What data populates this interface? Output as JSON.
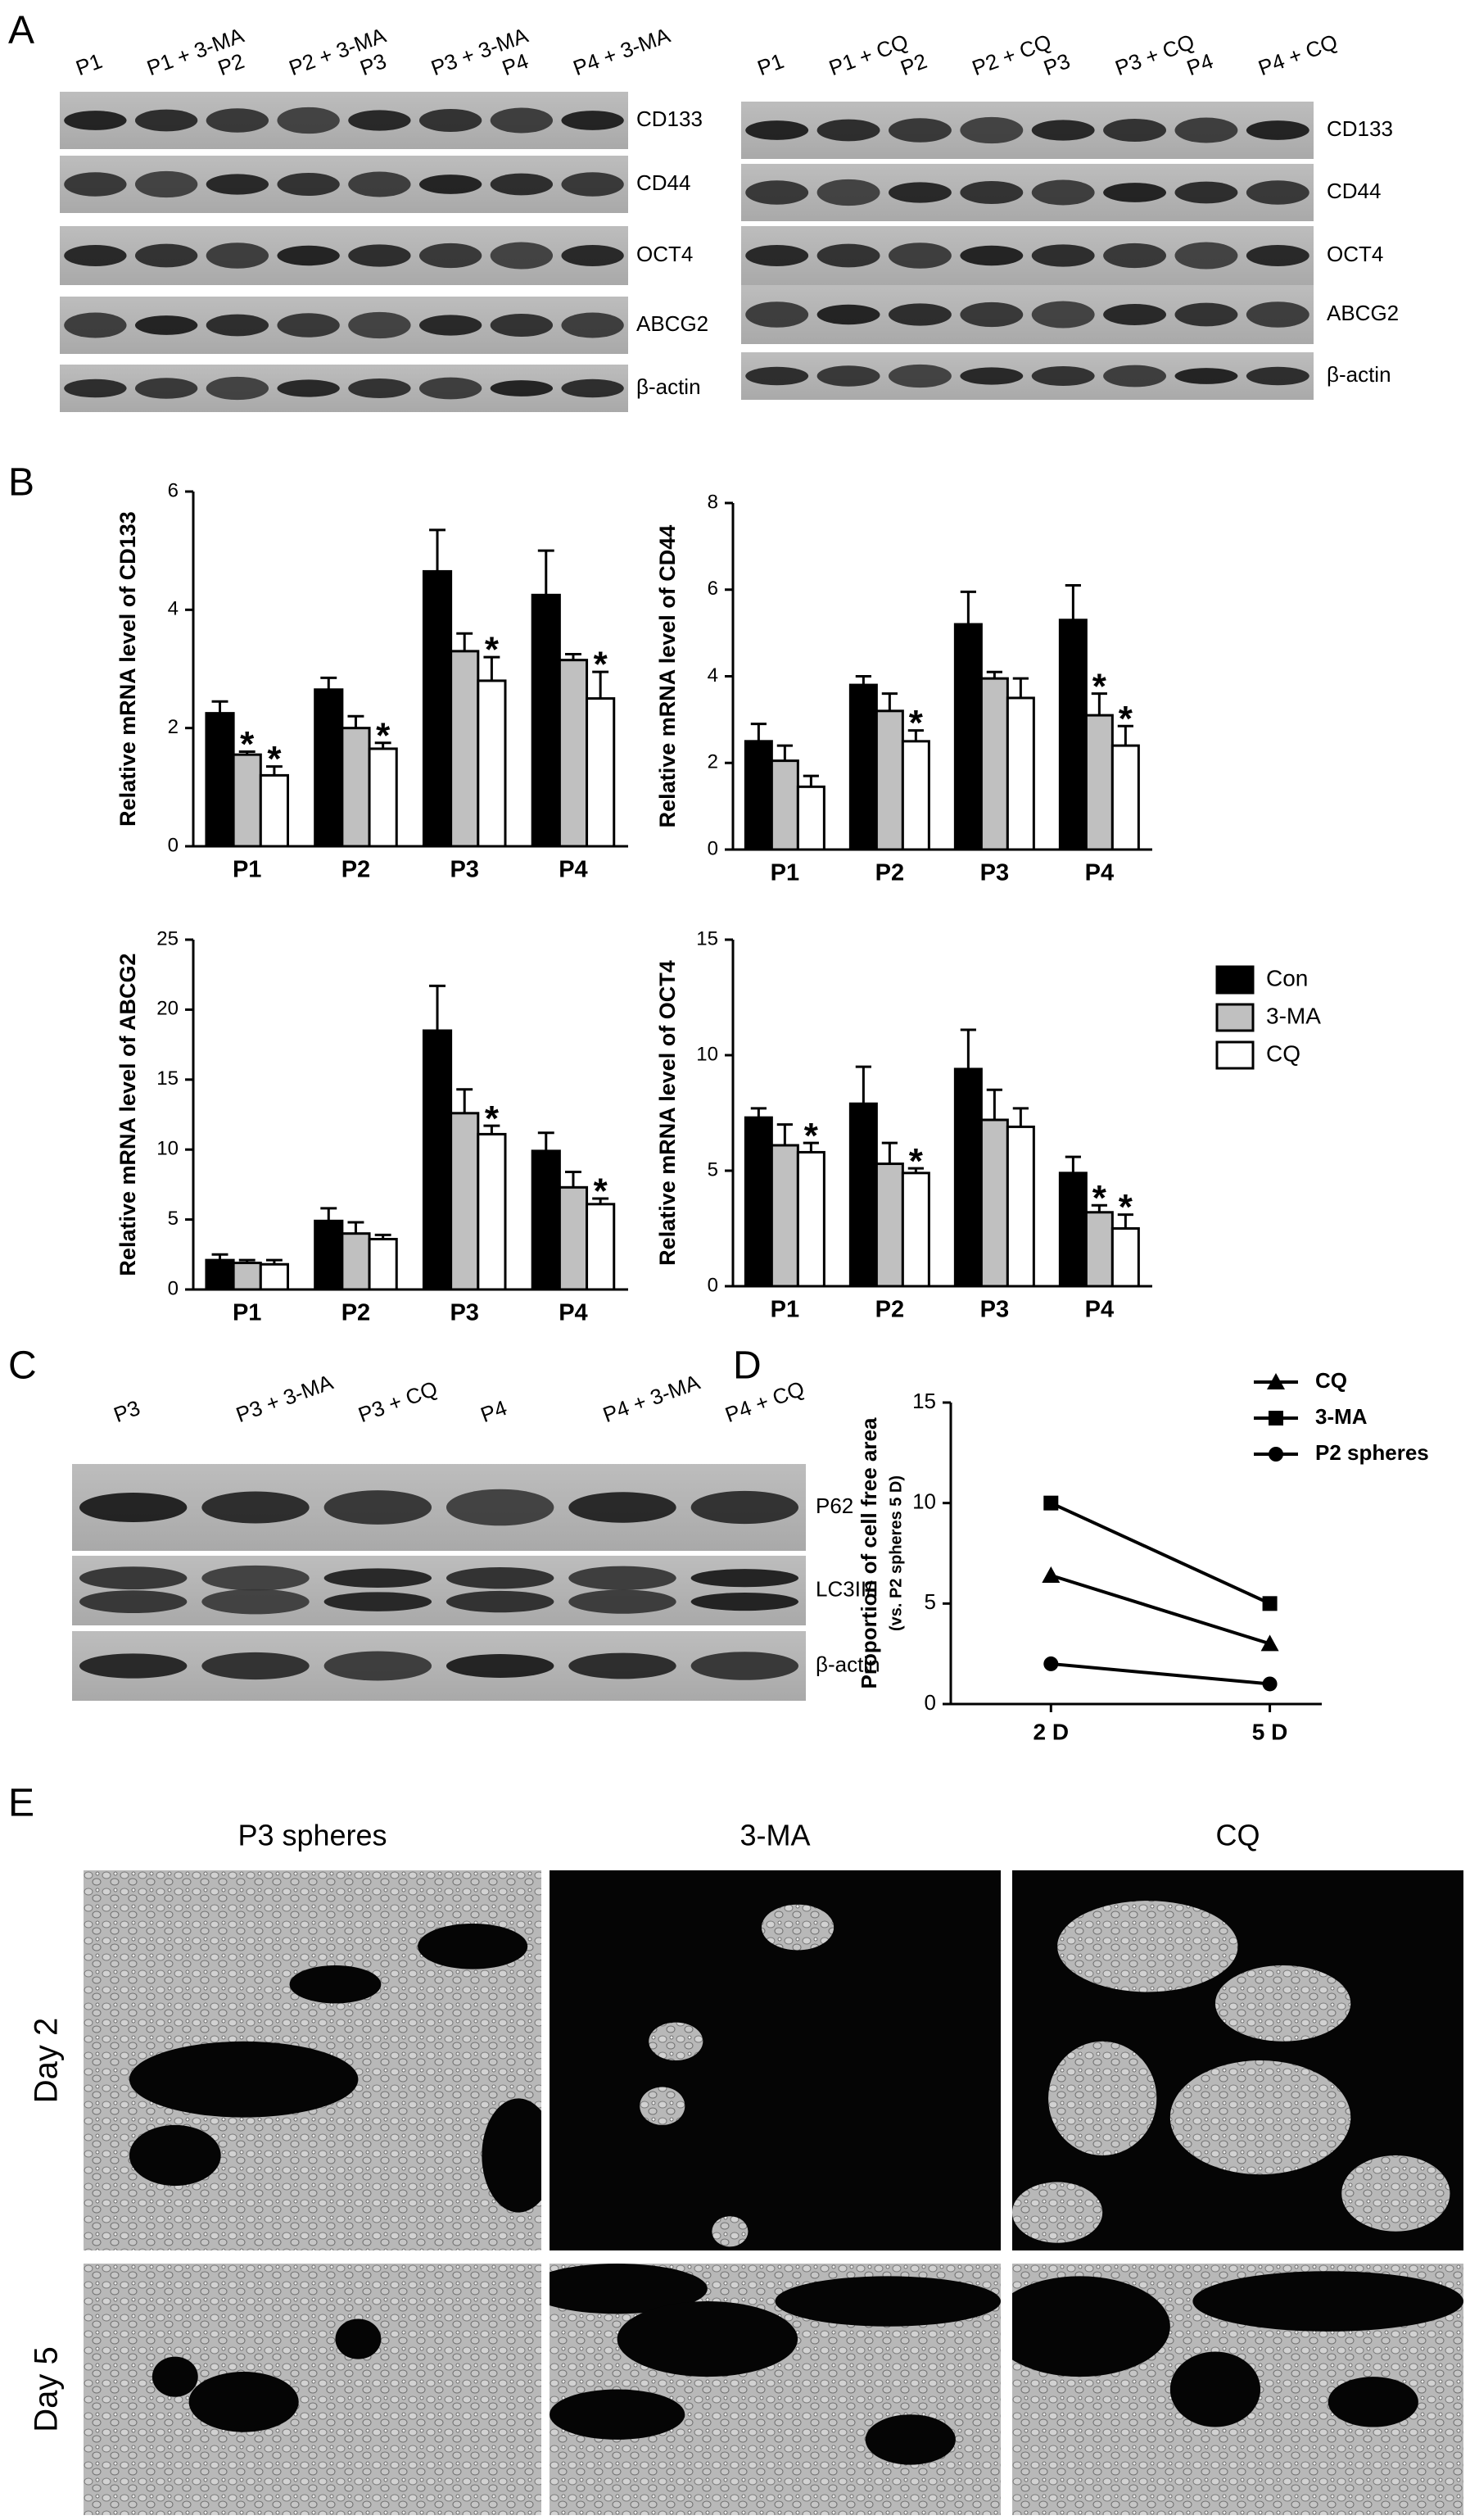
{
  "panel_labels": [
    "A",
    "B",
    "C",
    "D",
    "E"
  ],
  "blot_a_left": {
    "lanes": [
      "P1",
      "P1 + 3-MA",
      "P2",
      "P2 + 3-MA",
      "P3",
      "P3 + 3-MA",
      "P4",
      "P4 + 3-MA"
    ],
    "bands": [
      "CD133",
      "CD44",
      "OCT4",
      "ABCG2",
      "β-actin"
    ]
  },
  "blot_a_right": {
    "lanes": [
      "P1",
      "P1 + CQ",
      "P2",
      "P2 + CQ",
      "P3",
      "P3 + CQ",
      "P4",
      "P4 + CQ"
    ],
    "bands": [
      "CD133",
      "CD44",
      "OCT4",
      "ABCG2",
      "β-actin"
    ]
  },
  "chart_data": [
    {
      "type": "bar",
      "y_label": "Relative mRNA level of CD133",
      "categories": [
        "P1",
        "P2",
        "P3",
        "P4"
      ],
      "ylim": [
        0,
        6
      ],
      "yticks": [
        0,
        2,
        4,
        6
      ],
      "series": [
        {
          "color": "#000000",
          "values": [
            2.25,
            2.65,
            4.65,
            4.25
          ],
          "errors": [
            0.2,
            0.2,
            0.7,
            0.75
          ],
          "marks": [
            null,
            null,
            null,
            null
          ]
        },
        {
          "color": "#c0c0c0",
          "values": [
            1.55,
            2.0,
            3.3,
            3.15
          ],
          "errors": [
            0.05,
            0.2,
            0.3,
            0.1
          ],
          "marks": [
            "*",
            null,
            null,
            null
          ]
        },
        {
          "color": "#ffffff",
          "values": [
            1.2,
            1.65,
            2.8,
            2.5
          ],
          "errors": [
            0.15,
            0.1,
            0.4,
            0.45
          ],
          "marks": [
            "*",
            "*",
            "*",
            "*"
          ]
        }
      ]
    },
    {
      "type": "bar",
      "y_label": "Relative mRNA level of CD44",
      "categories": [
        "P1",
        "P2",
        "P3",
        "P4"
      ],
      "ylim": [
        0,
        8
      ],
      "yticks": [
        0,
        2,
        4,
        6,
        8
      ],
      "series": [
        {
          "color": "#000000",
          "values": [
            2.5,
            3.8,
            5.2,
            5.3
          ],
          "errors": [
            0.4,
            0.2,
            0.75,
            0.8
          ],
          "marks": [
            null,
            null,
            null,
            null
          ]
        },
        {
          "color": "#c0c0c0",
          "values": [
            2.05,
            3.2,
            3.95,
            3.1
          ],
          "errors": [
            0.35,
            0.4,
            0.15,
            0.5
          ],
          "marks": [
            null,
            null,
            null,
            "*"
          ]
        },
        {
          "color": "#ffffff",
          "values": [
            1.45,
            2.5,
            3.5,
            2.4
          ],
          "errors": [
            0.25,
            0.25,
            0.45,
            0.45
          ],
          "marks": [
            null,
            "*",
            null,
            "*"
          ]
        }
      ]
    },
    {
      "type": "bar",
      "y_label": "Relative mRNA level of ABCG2",
      "categories": [
        "P1",
        "P2",
        "P3",
        "P4"
      ],
      "ylim": [
        0,
        25
      ],
      "yticks": [
        0,
        5,
        10,
        15,
        20,
        25
      ],
      "series": [
        {
          "color": "#000000",
          "values": [
            2.1,
            4.9,
            18.5,
            9.9
          ],
          "errors": [
            0.4,
            0.9,
            3.2,
            1.3
          ],
          "marks": [
            null,
            null,
            null,
            null
          ]
        },
        {
          "color": "#c0c0c0",
          "values": [
            1.9,
            4.0,
            12.6,
            7.3
          ],
          "errors": [
            0.2,
            0.8,
            1.7,
            1.1
          ],
          "marks": [
            null,
            null,
            null,
            null
          ]
        },
        {
          "color": "#ffffff",
          "values": [
            1.8,
            3.6,
            11.1,
            6.1
          ],
          "errors": [
            0.3,
            0.3,
            0.6,
            0.4
          ],
          "marks": [
            null,
            null,
            "*",
            "*"
          ]
        }
      ]
    },
    {
      "type": "bar",
      "y_label": "Relative mRNA level of OCT4",
      "categories": [
        "P1",
        "P2",
        "P3",
        "P4"
      ],
      "ylim": [
        0,
        15
      ],
      "yticks": [
        0,
        5,
        10,
        15
      ],
      "legend": "right",
      "series": [
        {
          "name": "Con",
          "color": "#000000",
          "values": [
            7.3,
            7.9,
            9.4,
            4.9
          ],
          "errors": [
            0.4,
            1.6,
            1.7,
            0.7
          ],
          "marks": [
            null,
            null,
            null,
            null
          ]
        },
        {
          "name": "3-MA",
          "color": "#c0c0c0",
          "values": [
            6.1,
            5.3,
            7.2,
            3.2
          ],
          "errors": [
            0.9,
            0.9,
            1.3,
            0.3
          ],
          "marks": [
            null,
            null,
            null,
            "*"
          ]
        },
        {
          "name": "CQ",
          "color": "#ffffff",
          "values": [
            5.8,
            4.9,
            6.9,
            2.5
          ],
          "errors": [
            0.4,
            0.2,
            0.8,
            0.6
          ],
          "marks": [
            "*",
            "*",
            null,
            "*"
          ]
        }
      ]
    },
    {
      "type": "line",
      "y_label": "Proportion of cell free area",
      "y_sublabel": "(vs. P2 spheres 5 D)",
      "categories": [
        "2 D",
        "5 D"
      ],
      "ylim": [
        0,
        15
      ],
      "yticks": [
        0,
        5,
        10,
        15
      ],
      "legend": "upper right",
      "series": [
        {
          "name": "CQ",
          "color": "#000000",
          "marker": "triangle",
          "values": [
            6.4,
            3.0
          ]
        },
        {
          "name": "3-MA",
          "color": "#000000",
          "marker": "square",
          "values": [
            10,
            5
          ]
        },
        {
          "name": "P2 spheres",
          "color": "#000000",
          "marker": "circle",
          "values": [
            2,
            1
          ]
        }
      ]
    }
  ],
  "blot_c": {
    "lanes": [
      "P3",
      "P3 + 3-MA",
      "P3 + CQ",
      "P4",
      "P4 + 3-MA",
      "P4 + CQ"
    ],
    "bands": [
      "P62",
      "LC3II/I",
      "β-actin"
    ]
  },
  "micrographs": {
    "columns": [
      "P3 spheres",
      "3-MA",
      "CQ"
    ],
    "rows": [
      "Day 2",
      "Day 5"
    ]
  }
}
